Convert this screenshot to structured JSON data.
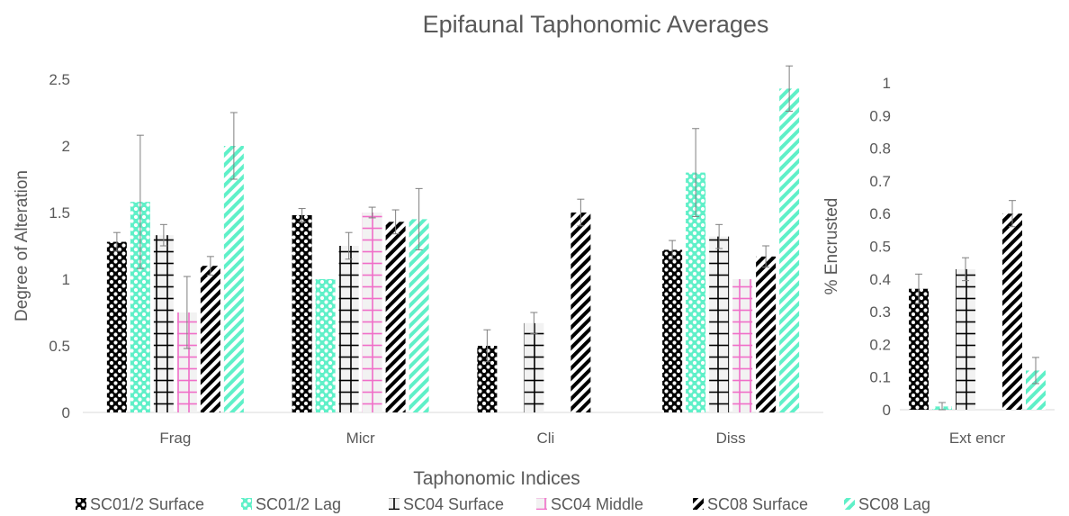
{
  "chart_data": {
    "title": "Epifaunal Taphonomic Averages",
    "xlabel": "Taphonomic Indices",
    "series": [
      {
        "name": "SC01/2 Surface",
        "color": "#000000",
        "pattern": "dots"
      },
      {
        "name": "SC01/2 Lag",
        "color": "#5ff0c8",
        "pattern": "dots"
      },
      {
        "name": "SC04 Surface",
        "color": "#000000",
        "pattern": "cross"
      },
      {
        "name": "SC04 Middle",
        "color": "#f06ec8",
        "pattern": "cross"
      },
      {
        "name": "SC08 Surface",
        "color": "#000000",
        "pattern": "diagonal"
      },
      {
        "name": "SC08 Lag",
        "color": "#5ff0c8",
        "pattern": "diagonal"
      }
    ],
    "panels": [
      {
        "type": "bar",
        "ylabel": "Degree of Alteration",
        "ylim": [
          0,
          2.5
        ],
        "yticks": [
          0,
          0.5,
          1,
          1.5,
          2,
          2.5
        ],
        "ytick_labels": [
          "0",
          "0.5",
          "1",
          "1.5",
          "2",
          "2.5"
        ],
        "categories": [
          "Frag",
          "Micr",
          "Cli",
          "Diss"
        ],
        "values": [
          [
            1.28,
            1.48,
            0.5,
            1.22
          ],
          [
            1.58,
            1.0,
            null,
            1.8
          ],
          [
            1.33,
            1.25,
            0.67,
            1.32
          ],
          [
            0.75,
            1.5,
            null,
            1.0
          ],
          [
            1.1,
            1.43,
            1.5,
            1.17
          ],
          [
            2.0,
            1.45,
            null,
            2.43
          ]
        ],
        "errors": [
          [
            0.07,
            0.05,
            0.12,
            0.07
          ],
          [
            0.5,
            0.0,
            null,
            0.33
          ],
          [
            0.08,
            0.1,
            0.08,
            0.09
          ],
          [
            0.27,
            0.04,
            null,
            0.0
          ],
          [
            0.07,
            0.09,
            0.1,
            0.08
          ],
          [
            0.25,
            0.23,
            null,
            0.17
          ]
        ],
        "grid": false
      },
      {
        "type": "bar",
        "ylabel": "% Encrusted",
        "ylim": [
          0,
          1
        ],
        "yticks": [
          0,
          0.1,
          0.2,
          0.3,
          0.4,
          0.5,
          0.6,
          0.7,
          0.8,
          0.9,
          1
        ],
        "ytick_labels": [
          "0",
          "0.1",
          "0.2",
          "0.3",
          "0.4",
          "0.5",
          "0.6",
          "0.7",
          "0.8",
          "0.9",
          "1"
        ],
        "categories": [
          "Ext encr"
        ],
        "values": [
          [
            0.37
          ],
          [
            0.01
          ],
          [
            0.43
          ],
          [
            null
          ],
          [
            0.6
          ],
          [
            0.12
          ]
        ],
        "errors": [
          [
            0.045
          ],
          [
            0.012
          ],
          [
            0.035
          ],
          [
            null
          ],
          [
            0.04
          ],
          [
            0.04
          ]
        ],
        "grid": false
      }
    ],
    "legend_position": "bottom"
  }
}
